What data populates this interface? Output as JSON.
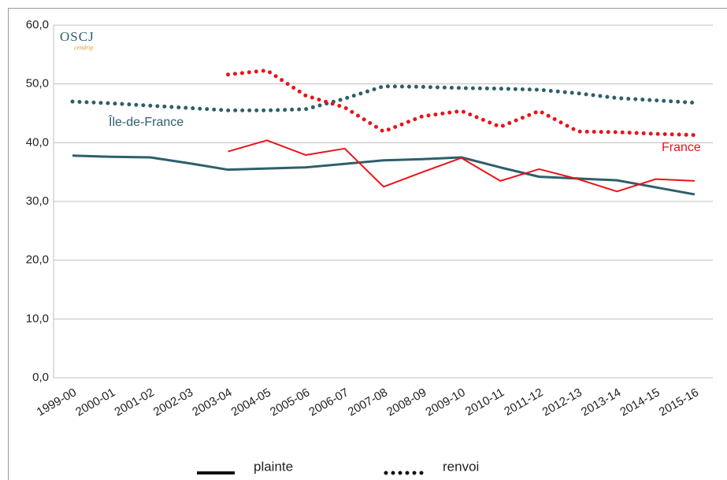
{
  "chart_data": {
    "type": "line",
    "categories": [
      "1999-00",
      "2000-01",
      "2001-02",
      "2002-03",
      "2003-04",
      "2004-05",
      "2005-06",
      "2006-07",
      "2007-08",
      "2008-09",
      "2009-10",
      "2010-11",
      "2011-12",
      "2012-13",
      "2013-14",
      "2014-15",
      "2015-16"
    ],
    "ylim": [
      0,
      60
    ],
    "yticks": [
      {
        "value": 0,
        "label": "0,0"
      },
      {
        "value": 10,
        "label": "10,0"
      },
      {
        "value": 20,
        "label": "20,0"
      },
      {
        "value": 30,
        "label": "30,0"
      },
      {
        "value": 40,
        "label": "40,0"
      },
      {
        "value": 50,
        "label": "50,0"
      },
      {
        "value": 60,
        "label": "60,0"
      }
    ],
    "grid": true,
    "logo": {
      "title": "OSCJ",
      "subtitle": "cendrip"
    },
    "legend": [
      {
        "label": "plainte",
        "style": "solid"
      },
      {
        "label": "renvoi",
        "style": "dotted"
      }
    ],
    "groups": [
      {
        "label": "Île-de-France",
        "color": "#2e5f6b",
        "series": [
          {
            "style": "solid",
            "values": [
              37.8,
              37.6,
              37.5,
              36.5,
              35.4,
              35.6,
              35.8,
              36.4,
              37.0,
              37.2,
              37.5,
              35.8,
              34.2,
              33.9,
              33.6,
              32.4,
              31.2
            ]
          },
          {
            "style": "dotted",
            "values": [
              47.0,
              46.7,
              46.3,
              45.9,
              45.5,
              45.5,
              45.7,
              47.5,
              49.6,
              49.5,
              49.3,
              49.2,
              49.0,
              48.4,
              47.6,
              47.2,
              46.8
            ]
          }
        ]
      },
      {
        "label": "France",
        "color": "#e8141a",
        "series": [
          {
            "style": "solid",
            "values": [
              null,
              null,
              null,
              null,
              38.5,
              40.4,
              37.9,
              39.0,
              32.5,
              35.0,
              37.4,
              33.5,
              35.5,
              33.8,
              31.7,
              33.8,
              33.5
            ]
          },
          {
            "style": "dotted",
            "values": [
              null,
              null,
              null,
              null,
              51.6,
              52.3,
              48.0,
              46.0,
              41.9,
              44.5,
              45.4,
              42.7,
              45.4,
              41.9,
              41.8,
              41.5,
              41.3
            ]
          }
        ]
      }
    ]
  }
}
